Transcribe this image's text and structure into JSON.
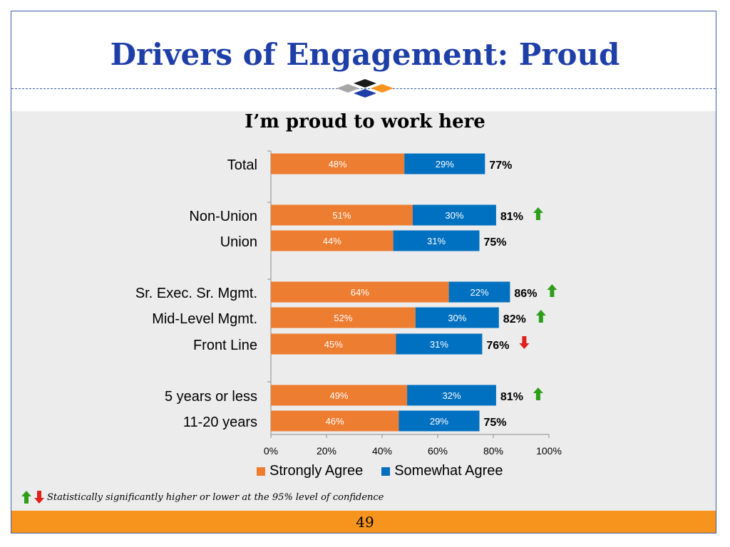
{
  "slide": {
    "title": "Drivers of Engagement: Proud",
    "subtitle": "I’m proud to work here",
    "footnote": "Statistically significantly higher or lower at the 95% level of confidence",
    "page_number": "49"
  },
  "colors": {
    "title": "#1f3fa8",
    "strongly": "#ed7d31",
    "somewhat": "#0070c0",
    "up": "#2e9e1a",
    "down": "#e0201b",
    "footer": "#f7941d",
    "panel": "#ececec"
  },
  "chart_data": {
    "type": "bar",
    "orientation": "horizontal",
    "stacked": true,
    "categories": [
      "Total",
      "Non-Union",
      "Union",
      "Sr. Exec. Sr. Mgmt.",
      "Mid-Level Mgmt.",
      "Front Line",
      "5 years or less",
      "11-20 years"
    ],
    "series": [
      {
        "name": "Strongly Agree",
        "values": [
          48,
          51,
          44,
          64,
          52,
          45,
          49,
          46
        ],
        "labels": [
          "48%",
          "51%",
          "44%",
          "64%",
          "52%",
          "45%",
          "49%",
          "46%"
        ]
      },
      {
        "name": "Somewhat Agree",
        "values": [
          29,
          30,
          31,
          22,
          30,
          31,
          32,
          29
        ],
        "labels": [
          "29%",
          "30%",
          "31%",
          "22%",
          "30%",
          "31%",
          "32%",
          "29%"
        ]
      }
    ],
    "totals": [
      "77%",
      "81%",
      "75%",
      "86%",
      "82%",
      "76%",
      "81%",
      "75%"
    ],
    "significance": [
      "none",
      "up",
      "none",
      "up",
      "up",
      "down",
      "up",
      "none"
    ],
    "xlim": [
      0,
      100
    ],
    "x_ticks": [
      "0%",
      "20%",
      "40%",
      "60%",
      "80%",
      "100%"
    ],
    "legend_position": "bottom"
  }
}
